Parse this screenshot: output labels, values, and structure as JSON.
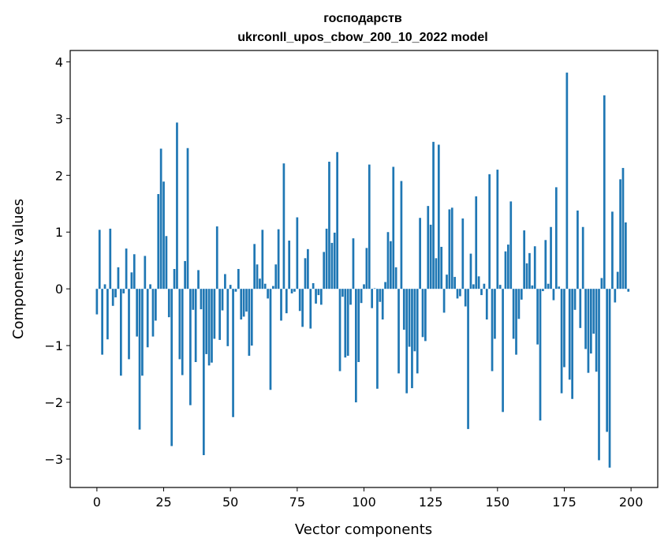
{
  "chart_data": {
    "type": "bar",
    "title_line1": "господарств",
    "title_line2": "ukrconll_upos_cbow_200_10_2022 model",
    "xlabel": "Vector components",
    "ylabel": "Components values",
    "xlim": [
      -10,
      210
    ],
    "ylim": [
      -3.5,
      4.2
    ],
    "xticks": [
      0,
      25,
      50,
      75,
      100,
      125,
      150,
      175,
      200
    ],
    "xtick_labels": [
      "0",
      "25",
      "50",
      "75",
      "100",
      "125",
      "150",
      "175",
      "200"
    ],
    "yticks": [
      -3,
      -2,
      -1,
      0,
      1,
      2,
      3,
      4
    ],
    "ytick_labels": [
      "−3",
      "−2",
      "−1",
      "0",
      "1",
      "2",
      "3",
      "4"
    ],
    "bar_color": "#1f77b4",
    "values": [
      -0.45,
      1.04,
      -1.16,
      0.08,
      -0.89,
      1.06,
      -0.3,
      -0.15,
      0.38,
      -1.53,
      -0.08,
      0.71,
      -1.24,
      0.29,
      0.61,
      -0.84,
      -2.48,
      -1.53,
      0.58,
      -1.03,
      0.08,
      -0.84,
      -0.56,
      1.67,
      2.47,
      1.89,
      0.93,
      -0.5,
      -2.77,
      0.35,
      2.93,
      -1.24,
      -1.52,
      0.49,
      2.48,
      -2.05,
      -0.37,
      -1.29,
      0.33,
      -0.36,
      -2.93,
      -1.15,
      -1.35,
      -1.3,
      -0.88,
      1.1,
      -0.9,
      -0.38,
      0.26,
      -1.01,
      0.07,
      -2.26,
      -0.05,
      0.35,
      -0.54,
      -0.49,
      -0.4,
      -1.18,
      -1.0,
      0.79,
      0.43,
      0.18,
      1.04,
      0.09,
      -0.17,
      -1.78,
      0.05,
      0.43,
      1.05,
      -0.56,
      2.21,
      -0.43,
      0.85,
      -0.08,
      -0.05,
      1.26,
      -0.39,
      -0.67,
      0.54,
      0.7,
      -0.7,
      0.1,
      -0.26,
      -0.11,
      -0.28,
      0.65,
      1.06,
      2.24,
      0.81,
      0.99,
      2.41,
      -1.45,
      -0.14,
      -1.21,
      -1.18,
      -0.28,
      0.89,
      -2.0,
      -1.29,
      -0.25,
      0.08,
      0.72,
      2.19,
      -0.34,
      0.01,
      -1.76,
      -0.23,
      -0.54,
      0.12,
      1.0,
      0.84,
      2.15,
      0.38,
      -1.49,
      1.9,
      -0.72,
      -1.84,
      -1.02,
      -1.75,
      -1.1,
      -1.49,
      1.25,
      -0.85,
      -0.92,
      1.46,
      1.13,
      2.59,
      0.54,
      2.54,
      0.74,
      -0.42,
      0.25,
      1.4,
      1.43,
      0.21,
      -0.17,
      -0.13,
      1.24,
      -0.31,
      -2.47,
      0.62,
      0.08,
      1.63,
      0.22,
      -0.11,
      0.09,
      -0.54,
      2.02,
      -1.45,
      -0.88,
      2.1,
      0.07,
      -2.17,
      0.66,
      0.78,
      1.54,
      -0.88,
      -1.16,
      -0.53,
      -0.19,
      1.03,
      0.45,
      0.63,
      0.06,
      0.75,
      -0.98,
      -2.32,
      -0.04,
      0.86,
      0.09,
      1.09,
      -0.2,
      1.79,
      0.04,
      -1.84,
      -1.38,
      3.81,
      -1.6,
      -1.94,
      -0.37,
      1.38,
      -0.69,
      1.09,
      -1.06,
      -1.48,
      -1.14,
      -0.79,
      -1.46,
      -3.02,
      0.19,
      3.41,
      -2.52,
      -3.15,
      1.36,
      -0.24,
      0.3,
      1.93,
      2.13,
      1.17,
      -0.05
    ]
  }
}
